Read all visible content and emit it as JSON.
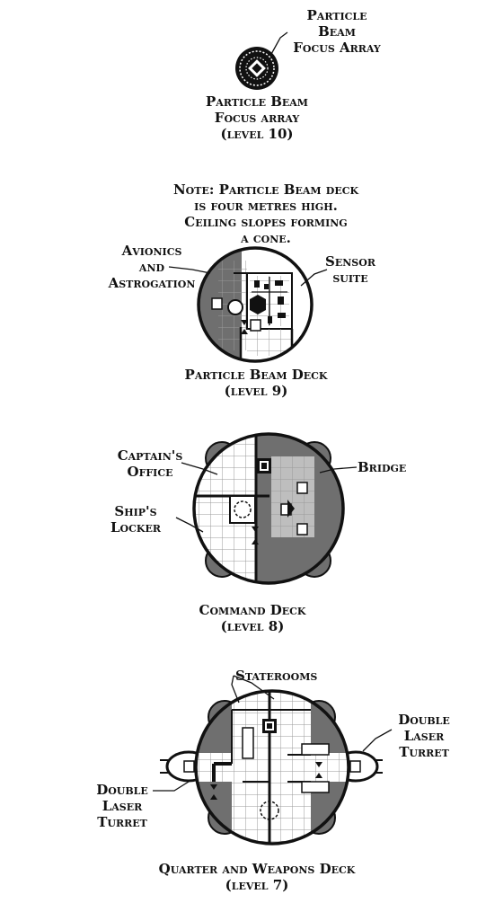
{
  "level10": {
    "callout": [
      "Particle",
      "Beam",
      "Focus Array"
    ],
    "caption": [
      "Particle Beam",
      "Focus array",
      "(level 10)"
    ]
  },
  "level9": {
    "note": [
      "Note:  Particle Beam deck",
      "is four metres high.",
      "Ceiling slopes forming",
      "a cone."
    ],
    "avionics": [
      "Avionics",
      "and",
      "Astrogation"
    ],
    "sensor": [
      "Sensor",
      "suite"
    ],
    "caption": [
      "Particle Beam Deck",
      "(level 9)"
    ]
  },
  "level8": {
    "captains_office": [
      "Captain's",
      "Office"
    ],
    "bridge": "Bridge",
    "ships_locker": [
      "Ship's",
      "Locker"
    ],
    "caption": [
      "Command Deck",
      "(level 8)"
    ]
  },
  "level7": {
    "staterooms": "Staterooms",
    "turret_right": [
      "Double",
      "Laser",
      "Turret"
    ],
    "turret_left": [
      "Double",
      "Laser",
      "Turret"
    ],
    "caption": [
      "Quarter and Weapons Deck",
      "(level 7)"
    ]
  },
  "colors": {
    "ink": "#111111",
    "shade": "#6f6f6f",
    "grid": "#9a9a9a",
    "paper": "#ffffff"
  }
}
